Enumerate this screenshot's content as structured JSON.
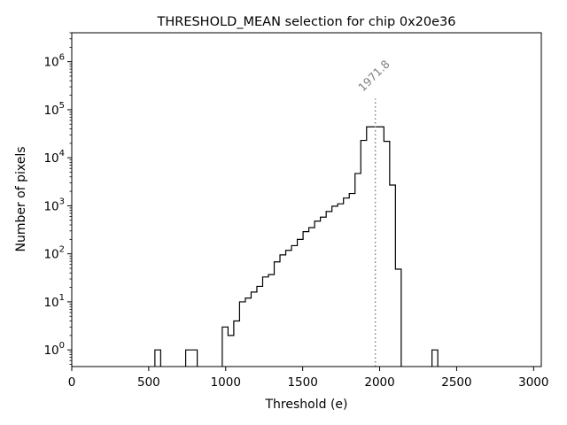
{
  "chart_data": {
    "type": "histogram",
    "title": "THRESHOLD_MEAN selection for chip 0x20e36",
    "xlabel": "Threshold (e)",
    "ylabel": "Number of pixels",
    "xlim": [
      0,
      3050
    ],
    "ylim": [
      0.45,
      4000000
    ],
    "yscale": "log",
    "grid": false,
    "xticks": [
      0,
      500,
      1000,
      1500,
      2000,
      2500,
      3000
    ],
    "xtick_labels": [
      "0",
      "500",
      "1000",
      "1500",
      "2000",
      "2500",
      "3000"
    ],
    "yticks": [
      1,
      10,
      100,
      1000,
      10000,
      100000,
      1000000
    ],
    "bin_width": 37.5,
    "bins": [
      {
        "x0": 540,
        "count": 1
      },
      {
        "x0": 740,
        "count": 1
      },
      {
        "x0": 777.5,
        "count": 1
      },
      {
        "x0": 977.5,
        "count": 3
      },
      {
        "x0": 1015,
        "count": 2
      },
      {
        "x0": 1052.5,
        "count": 4
      },
      {
        "x0": 1090,
        "count": 10
      },
      {
        "x0": 1127.5,
        "count": 12
      },
      {
        "x0": 1165,
        "count": 16
      },
      {
        "x0": 1202.5,
        "count": 21
      },
      {
        "x0": 1240,
        "count": 33
      },
      {
        "x0": 1277.5,
        "count": 37
      },
      {
        "x0": 1315,
        "count": 68
      },
      {
        "x0": 1352.5,
        "count": 95
      },
      {
        "x0": 1390,
        "count": 118
      },
      {
        "x0": 1427.5,
        "count": 148
      },
      {
        "x0": 1465,
        "count": 200
      },
      {
        "x0": 1502.5,
        "count": 290
      },
      {
        "x0": 1540,
        "count": 350
      },
      {
        "x0": 1577.5,
        "count": 480
      },
      {
        "x0": 1615,
        "count": 580
      },
      {
        "x0": 1652.5,
        "count": 760
      },
      {
        "x0": 1690,
        "count": 980
      },
      {
        "x0": 1727.5,
        "count": 1100
      },
      {
        "x0": 1765,
        "count": 1450
      },
      {
        "x0": 1802.5,
        "count": 1800
      },
      {
        "x0": 1840,
        "count": 4700
      },
      {
        "x0": 1877.5,
        "count": 23000
      },
      {
        "x0": 1915,
        "count": 44000
      },
      {
        "x0": 1952.5,
        "count": 44000
      },
      {
        "x0": 1990,
        "count": 44000
      },
      {
        "x0": 2027.5,
        "count": 22000
      },
      {
        "x0": 2065,
        "count": 2700
      },
      {
        "x0": 2102.5,
        "count": 48
      },
      {
        "x0": 2340,
        "count": 1
      }
    ],
    "annotations": [
      {
        "text": "1971.8",
        "x": 1971.8,
        "style": "dotted-vertical-line",
        "color": "#808080"
      }
    ]
  }
}
